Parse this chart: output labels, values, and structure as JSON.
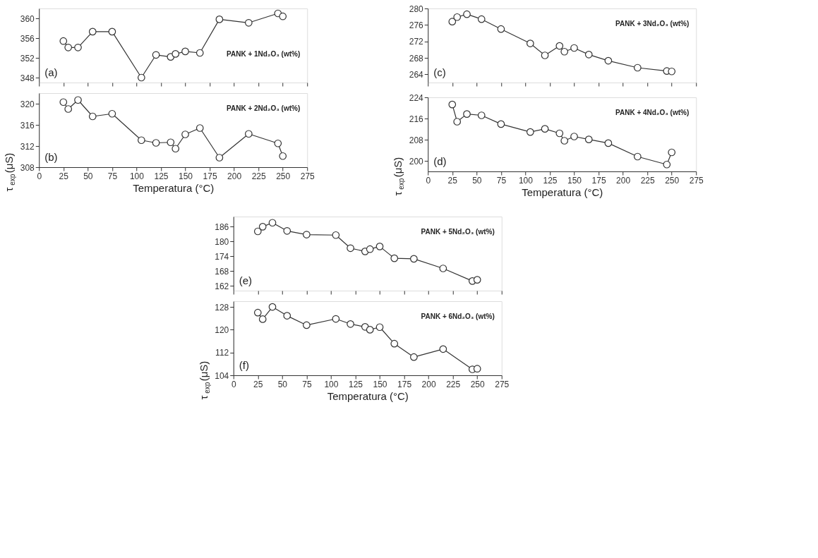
{
  "chart_data": [
    {
      "type": "line",
      "x": [
        25,
        30,
        40,
        55,
        75,
        105,
        120,
        135,
        140,
        150,
        165,
        185,
        215,
        245,
        250
      ],
      "values": [
        355.4,
        354.1,
        354.1,
        357.3,
        357.3,
        348,
        352.6,
        352.2,
        352.8,
        353.3,
        353,
        359.8,
        359.1,
        361,
        360.4
      ],
      "color": "#333333",
      "marker": "circle",
      "xlim": [
        0,
        275
      ],
      "xticks": [
        0,
        25,
        50,
        75,
        100,
        125,
        150,
        175,
        200,
        225,
        250,
        275
      ],
      "ylim": [
        347,
        362
      ],
      "yticks": [
        348,
        352,
        356,
        360
      ],
      "tick_labels": "y",
      "grid": false,
      "annotations": [
        "(a)",
        "PANK + 1Nd₂O₃ (wt%)"
      ]
    },
    {
      "type": "line",
      "x": [
        25,
        30,
        40,
        55,
        75,
        105,
        120,
        135,
        140,
        150,
        165,
        185,
        215,
        245,
        250
      ],
      "values": [
        320.3,
        319,
        320.7,
        317.6,
        318.1,
        313.1,
        312.6,
        312.7,
        311.5,
        314.2,
        315.4,
        309.8,
        314.3,
        312.5,
        310.1
      ],
      "color": "#333333",
      "marker": "circle",
      "xlim": [
        0,
        275
      ],
      "xticks": [
        0,
        25,
        50,
        75,
        100,
        125,
        150,
        175,
        200,
        225,
        250,
        275
      ],
      "ylim": [
        308,
        322
      ],
      "yticks": [
        308,
        312,
        316,
        320
      ],
      "grid": false,
      "xlabel": "Temperatura (°C)",
      "ylabel": "τ$_{exp}$(μS)",
      "annotations": [
        "(b)",
        "PANK + 2Nd₂O₃ (wt%)"
      ]
    },
    {
      "type": "line",
      "x": [
        25,
        30,
        40,
        55,
        75,
        105,
        120,
        135,
        140,
        150,
        165,
        185,
        215,
        245,
        250
      ],
      "values": [
        276.8,
        277.9,
        278.6,
        277.4,
        275,
        271.5,
        268.6,
        270.9,
        269.5,
        270.4,
        268.8,
        267.3,
        265.6,
        264.8,
        264.7
      ],
      "color": "#333333",
      "marker": "circle",
      "xlim": [
        0,
        275
      ],
      "xticks": [
        0,
        25,
        50,
        75,
        100,
        125,
        150,
        175,
        200,
        225,
        250,
        275
      ],
      "ylim": [
        262,
        280
      ],
      "yticks": [
        264,
        268,
        272,
        276,
        280
      ],
      "tick_labels": "y",
      "grid": false,
      "annotations": [
        "(c)",
        "PANK + 3Nd₂O₃ (wt%)"
      ]
    },
    {
      "type": "line",
      "x": [
        25,
        30,
        40,
        55,
        75,
        105,
        120,
        135,
        140,
        150,
        165,
        185,
        215,
        245,
        250
      ],
      "values": [
        221.3,
        214.8,
        217.7,
        217.2,
        213.9,
        210.9,
        212.1,
        210.4,
        207.6,
        209.2,
        208.1,
        206.7,
        201.6,
        198.6,
        203.2
      ],
      "color": "#333333",
      "marker": "circle",
      "xlim": [
        0,
        275
      ],
      "xticks": [
        0,
        25,
        50,
        75,
        100,
        125,
        150,
        175,
        200,
        225,
        250,
        275
      ],
      "ylim": [
        196,
        224
      ],
      "yticks": [
        200,
        208,
        216,
        224
      ],
      "grid": false,
      "xlabel": "Temperatura (°C)",
      "ylabel": "τ$_{exp}$(μS)",
      "annotations": [
        "(d)",
        "PANK + 4Nd₂O₃ (wt%)"
      ]
    },
    {
      "type": "line",
      "x": [
        25,
        30,
        40,
        55,
        75,
        105,
        120,
        135,
        140,
        150,
        165,
        185,
        215,
        245,
        250
      ],
      "values": [
        184,
        185.9,
        187.5,
        184.2,
        182.7,
        182.5,
        177.2,
        175.9,
        176.8,
        177.9,
        173.1,
        172.9,
        169,
        163.9,
        164.4
      ],
      "color": "#333333",
      "marker": "circle",
      "xlim": [
        0,
        275
      ],
      "xticks": [
        0,
        25,
        50,
        75,
        100,
        125,
        150,
        175,
        200,
        225,
        250,
        275
      ],
      "ylim": [
        160,
        190
      ],
      "yticks": [
        162,
        168,
        174,
        180,
        186
      ],
      "tick_labels": "y",
      "grid": false,
      "annotations": [
        "(e)",
        "PANK + 5Nd₂O₃ (wt%)"
      ]
    },
    {
      "type": "line",
      "x": [
        25,
        30,
        40,
        55,
        75,
        105,
        120,
        135,
        140,
        150,
        165,
        185,
        215,
        245,
        250
      ],
      "values": [
        126,
        123.7,
        128,
        124.9,
        121.6,
        123.8,
        122,
        121,
        120,
        120.9,
        115.1,
        110.4,
        113.2,
        106.1,
        106.3
      ],
      "color": "#333333",
      "marker": "circle",
      "xlim": [
        0,
        275
      ],
      "xticks": [
        0,
        25,
        50,
        75,
        100,
        125,
        150,
        175,
        200,
        225,
        250,
        275
      ],
      "ylim": [
        104,
        130
      ],
      "yticks": [
        104,
        112,
        120,
        128
      ],
      "grid": false,
      "xlabel": "Temperatura (°C)",
      "ylabel": "τ$_{exp}$(μS)",
      "annotations": [
        "(f)",
        "PANK + 6Nd₂O₃ (wt%)"
      ]
    }
  ]
}
